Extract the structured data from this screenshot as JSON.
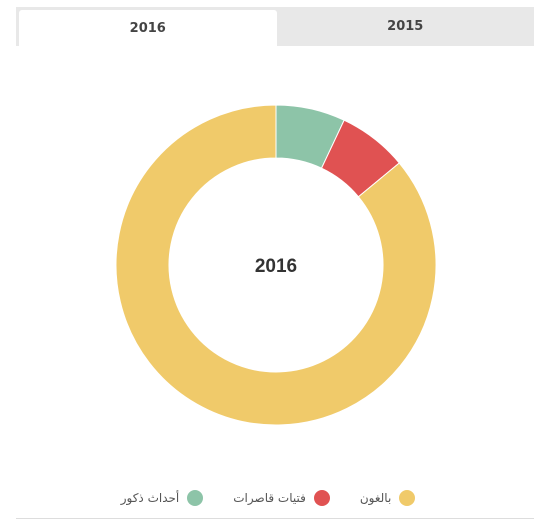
{
  "tabs": [
    {
      "label": "2016",
      "active": true
    },
    {
      "label": "2015",
      "active": false
    }
  ],
  "chart_data": {
    "type": "pie",
    "center_label": "2016",
    "categories": [
      "أحداث ذكور",
      "فتيات قاصرات",
      "بالغون"
    ],
    "values": [
      7,
      7,
      86
    ],
    "colors": [
      "#8dc4a8",
      "#e05252",
      "#f0ca6a"
    ],
    "legend_position": "bottom"
  }
}
